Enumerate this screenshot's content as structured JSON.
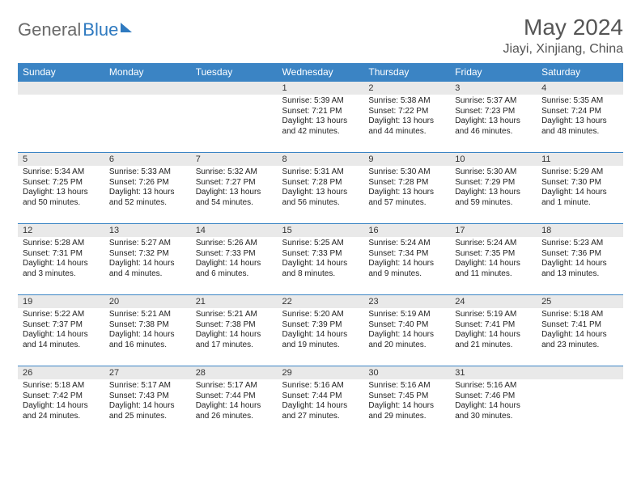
{
  "logo": {
    "part1": "General",
    "part2": "Blue"
  },
  "title": "May 2024",
  "location": "Jiayi, Xinjiang, China",
  "colors": {
    "header_bg": "#3b84c4",
    "header_text": "#ffffff",
    "daynum_bg": "#e9e9e9",
    "row_border": "#3b84c4",
    "title_color": "#555555",
    "logo_gray": "#6a6a6a",
    "logo_blue": "#2f7ac0"
  },
  "day_headers": [
    "Sunday",
    "Monday",
    "Tuesday",
    "Wednesday",
    "Thursday",
    "Friday",
    "Saturday"
  ],
  "weeks": [
    [
      null,
      null,
      null,
      {
        "n": "1",
        "sr": "5:39 AM",
        "ss": "7:21 PM",
        "dl": "13 hours and 42 minutes."
      },
      {
        "n": "2",
        "sr": "5:38 AM",
        "ss": "7:22 PM",
        "dl": "13 hours and 44 minutes."
      },
      {
        "n": "3",
        "sr": "5:37 AM",
        "ss": "7:23 PM",
        "dl": "13 hours and 46 minutes."
      },
      {
        "n": "4",
        "sr": "5:35 AM",
        "ss": "7:24 PM",
        "dl": "13 hours and 48 minutes."
      }
    ],
    [
      {
        "n": "5",
        "sr": "5:34 AM",
        "ss": "7:25 PM",
        "dl": "13 hours and 50 minutes."
      },
      {
        "n": "6",
        "sr": "5:33 AM",
        "ss": "7:26 PM",
        "dl": "13 hours and 52 minutes."
      },
      {
        "n": "7",
        "sr": "5:32 AM",
        "ss": "7:27 PM",
        "dl": "13 hours and 54 minutes."
      },
      {
        "n": "8",
        "sr": "5:31 AM",
        "ss": "7:28 PM",
        "dl": "13 hours and 56 minutes."
      },
      {
        "n": "9",
        "sr": "5:30 AM",
        "ss": "7:28 PM",
        "dl": "13 hours and 57 minutes."
      },
      {
        "n": "10",
        "sr": "5:30 AM",
        "ss": "7:29 PM",
        "dl": "13 hours and 59 minutes."
      },
      {
        "n": "11",
        "sr": "5:29 AM",
        "ss": "7:30 PM",
        "dl": "14 hours and 1 minute."
      }
    ],
    [
      {
        "n": "12",
        "sr": "5:28 AM",
        "ss": "7:31 PM",
        "dl": "14 hours and 3 minutes."
      },
      {
        "n": "13",
        "sr": "5:27 AM",
        "ss": "7:32 PM",
        "dl": "14 hours and 4 minutes."
      },
      {
        "n": "14",
        "sr": "5:26 AM",
        "ss": "7:33 PM",
        "dl": "14 hours and 6 minutes."
      },
      {
        "n": "15",
        "sr": "5:25 AM",
        "ss": "7:33 PM",
        "dl": "14 hours and 8 minutes."
      },
      {
        "n": "16",
        "sr": "5:24 AM",
        "ss": "7:34 PM",
        "dl": "14 hours and 9 minutes."
      },
      {
        "n": "17",
        "sr": "5:24 AM",
        "ss": "7:35 PM",
        "dl": "14 hours and 11 minutes."
      },
      {
        "n": "18",
        "sr": "5:23 AM",
        "ss": "7:36 PM",
        "dl": "14 hours and 13 minutes."
      }
    ],
    [
      {
        "n": "19",
        "sr": "5:22 AM",
        "ss": "7:37 PM",
        "dl": "14 hours and 14 minutes."
      },
      {
        "n": "20",
        "sr": "5:21 AM",
        "ss": "7:38 PM",
        "dl": "14 hours and 16 minutes."
      },
      {
        "n": "21",
        "sr": "5:21 AM",
        "ss": "7:38 PM",
        "dl": "14 hours and 17 minutes."
      },
      {
        "n": "22",
        "sr": "5:20 AM",
        "ss": "7:39 PM",
        "dl": "14 hours and 19 minutes."
      },
      {
        "n": "23",
        "sr": "5:19 AM",
        "ss": "7:40 PM",
        "dl": "14 hours and 20 minutes."
      },
      {
        "n": "24",
        "sr": "5:19 AM",
        "ss": "7:41 PM",
        "dl": "14 hours and 21 minutes."
      },
      {
        "n": "25",
        "sr": "5:18 AM",
        "ss": "7:41 PM",
        "dl": "14 hours and 23 minutes."
      }
    ],
    [
      {
        "n": "26",
        "sr": "5:18 AM",
        "ss": "7:42 PM",
        "dl": "14 hours and 24 minutes."
      },
      {
        "n": "27",
        "sr": "5:17 AM",
        "ss": "7:43 PM",
        "dl": "14 hours and 25 minutes."
      },
      {
        "n": "28",
        "sr": "5:17 AM",
        "ss": "7:44 PM",
        "dl": "14 hours and 26 minutes."
      },
      {
        "n": "29",
        "sr": "5:16 AM",
        "ss": "7:44 PM",
        "dl": "14 hours and 27 minutes."
      },
      {
        "n": "30",
        "sr": "5:16 AM",
        "ss": "7:45 PM",
        "dl": "14 hours and 29 minutes."
      },
      {
        "n": "31",
        "sr": "5:16 AM",
        "ss": "7:46 PM",
        "dl": "14 hours and 30 minutes."
      },
      null
    ]
  ],
  "labels": {
    "sunrise": "Sunrise:",
    "sunset": "Sunset:",
    "daylight": "Daylight:"
  }
}
